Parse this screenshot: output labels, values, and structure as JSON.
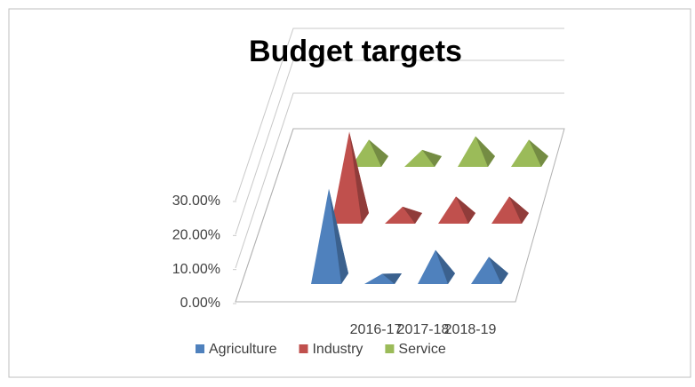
{
  "chart_data": {
    "type": "pyramid3d",
    "title": "Budget targets",
    "categories": [
      null,
      "2016-17",
      "2017-18",
      "2018-19"
    ],
    "series": [
      {
        "name": "Agriculture",
        "color": "#4f81bd",
        "values": [
          28,
          3,
          10,
          8
        ]
      },
      {
        "name": "Industry",
        "color": "#c0504d",
        "values": [
          27,
          5,
          8,
          8
        ]
      },
      {
        "name": "Service",
        "color": "#9bbb59",
        "values": [
          8,
          5,
          9,
          8
        ]
      }
    ],
    "ylim": [
      0,
      30
    ],
    "yticks": [
      {
        "value": 0,
        "label": "0.00%"
      },
      {
        "value": 10,
        "label": "10.00%"
      },
      {
        "value": 20,
        "label": "20.00%"
      },
      {
        "value": 30,
        "label": "30.00%"
      }
    ],
    "legend": "bottom"
  }
}
